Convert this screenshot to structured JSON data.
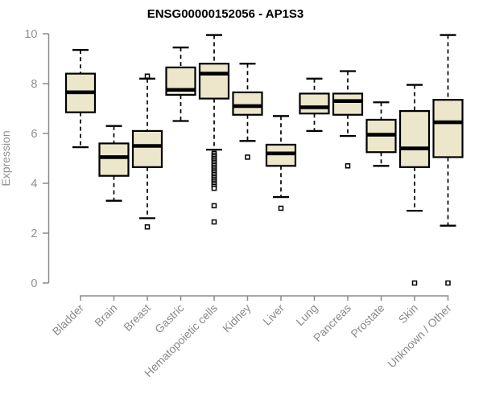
{
  "chart_data": {
    "type": "boxplot",
    "title": "ENSG00000152056 - AP1S3",
    "ylabel": "Expression",
    "xlabel": "",
    "ylim": [
      0,
      10
    ],
    "yticks": [
      0,
      2,
      4,
      6,
      8,
      10
    ],
    "grid": false,
    "legend": "none",
    "colors": {
      "box_fill": "#ECE6CB",
      "box_border": "#000000",
      "median": "#000000",
      "whisker": "#000000",
      "axis_line": "#8B8B8B",
      "axis_text": "#8F8F8F",
      "title_text": "#000000",
      "background": "#FFFFFF"
    },
    "categories": [
      "Bladder",
      "Brain",
      "Breast",
      "Gastric",
      "Hematopoietic cells",
      "Kidney",
      "Liver",
      "Lung",
      "Pancreas",
      "Prostate",
      "Skin",
      "Unknown / Other"
    ],
    "series": [
      {
        "category": "Bladder",
        "min": 5.45,
        "q1": 6.85,
        "median": 7.65,
        "q3": 8.4,
        "max": 9.35,
        "outliers": []
      },
      {
        "category": "Brain",
        "min": 3.3,
        "q1": 4.3,
        "median": 5.05,
        "q3": 5.6,
        "max": 6.3,
        "outliers": []
      },
      {
        "category": "Breast",
        "min": 2.6,
        "q1": 4.65,
        "median": 5.5,
        "q3": 6.1,
        "max": 8.2,
        "outliers": [
          8.3,
          2.25
        ]
      },
      {
        "category": "Gastric",
        "min": 6.5,
        "q1": 7.55,
        "median": 7.75,
        "q3": 8.65,
        "max": 9.45,
        "outliers": []
      },
      {
        "category": "Hematopoietic cells",
        "min": 5.35,
        "q1": 7.4,
        "median": 8.4,
        "q3": 8.8,
        "max": 9.95,
        "outliers": [
          5.2,
          5.13,
          5.06,
          4.99,
          4.92,
          4.85,
          4.78,
          4.71,
          4.64,
          4.57,
          4.5,
          4.43,
          4.36,
          4.29,
          4.22,
          4.15,
          4.08,
          4.01,
          3.94,
          3.87,
          3.8,
          3.1,
          2.45
        ]
      },
      {
        "category": "Kidney",
        "min": 5.7,
        "q1": 6.75,
        "median": 7.1,
        "q3": 7.65,
        "max": 8.8,
        "outliers": [
          5.05
        ]
      },
      {
        "category": "Liver",
        "min": 3.45,
        "q1": 4.7,
        "median": 5.2,
        "q3": 5.55,
        "max": 6.7,
        "outliers": [
          3.0
        ]
      },
      {
        "category": "Lung",
        "min": 6.1,
        "q1": 6.8,
        "median": 7.05,
        "q3": 7.6,
        "max": 8.2,
        "outliers": []
      },
      {
        "category": "Pancreas",
        "min": 5.9,
        "q1": 6.75,
        "median": 7.3,
        "q3": 7.6,
        "max": 8.5,
        "outliers": [
          4.7
        ]
      },
      {
        "category": "Prostate",
        "min": 4.7,
        "q1": 5.25,
        "median": 5.95,
        "q3": 6.55,
        "max": 7.25,
        "outliers": []
      },
      {
        "category": "Skin",
        "min": 2.9,
        "q1": 4.65,
        "median": 5.4,
        "q3": 6.9,
        "max": 7.95,
        "outliers": [
          0.0
        ]
      },
      {
        "category": "Unknown / Other",
        "min": 2.3,
        "q1": 5.05,
        "median": 6.45,
        "q3": 7.35,
        "max": 9.95,
        "outliers": [
          0.0
        ]
      }
    ]
  }
}
